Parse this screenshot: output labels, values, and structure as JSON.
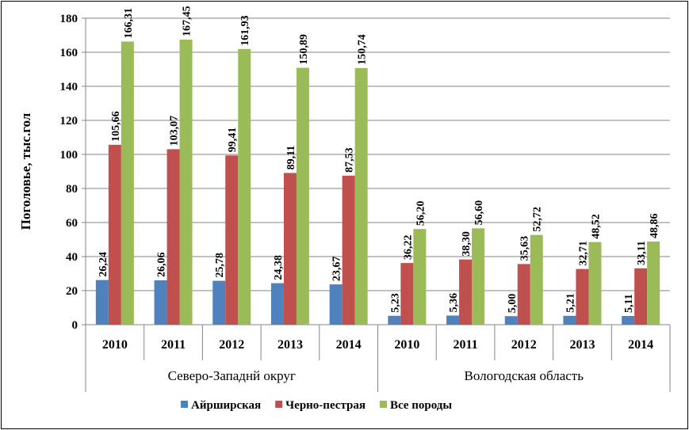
{
  "chart_data": {
    "type": "bar",
    "title": "",
    "ylabel": "Поголовье, тыс.гол",
    "ylim": [
      0,
      180
    ],
    "yticks": [
      0,
      20,
      40,
      60,
      80,
      100,
      120,
      140,
      160,
      180
    ],
    "categories": [
      "2010",
      "2011",
      "2012",
      "2013",
      "2014",
      "2010",
      "2011",
      "2012",
      "2013",
      "2014"
    ],
    "groups": [
      {
        "label": "Северо-Западнй округ",
        "span": 5
      },
      {
        "label": "Вологодская область",
        "span": 5
      }
    ],
    "series": [
      {
        "name": "Айрширская",
        "color": "#4f81bd",
        "values": [
          26.24,
          26.06,
          25.78,
          24.38,
          23.67,
          5.23,
          5.36,
          5.0,
          5.21,
          5.11
        ],
        "labels": [
          "26,24",
          "26,06",
          "25,78",
          "24,38",
          "23,67",
          "5,23",
          "5,36",
          "5,00",
          "5,21",
          "5,11"
        ]
      },
      {
        "name": "Черно-пестрая",
        "color": "#c0504d",
        "values": [
          105.66,
          103.07,
          99.41,
          89.11,
          87.53,
          36.22,
          38.3,
          35.63,
          32.71,
          33.11
        ],
        "labels": [
          "105,66",
          "103,07",
          "99,41",
          "89,11",
          "87,53",
          "36,22",
          "38,30",
          "35,63",
          "32,71",
          "33,11"
        ]
      },
      {
        "name": "Все породы",
        "color": "#9bbb59",
        "values": [
          166.31,
          167.45,
          161.93,
          150.89,
          150.74,
          56.2,
          56.6,
          52.72,
          48.52,
          48.86
        ],
        "labels": [
          "166,31",
          "167,45",
          "161,93",
          "150,89",
          "150,74",
          "56,20",
          "56,60",
          "52,72",
          "48,52",
          "48,86"
        ]
      }
    ],
    "grid": true,
    "legend_position": "bottom"
  }
}
